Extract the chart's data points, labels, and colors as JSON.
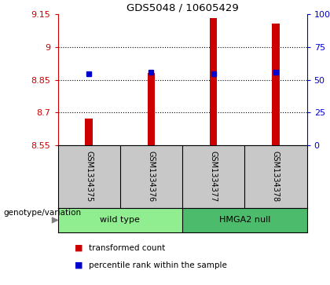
{
  "title": "GDS5048 / 10605429",
  "samples": [
    "GSM1334375",
    "GSM1334376",
    "GSM1334377",
    "GSM1334378"
  ],
  "red_values": [
    8.674,
    8.882,
    9.132,
    9.108
  ],
  "blue_values": [
    8.878,
    8.886,
    8.876,
    8.883
  ],
  "ymin": 8.55,
  "ymax": 9.15,
  "yticks_left": [
    8.55,
    8.7,
    8.85,
    9.0,
    9.15
  ],
  "ytick_labels_left": [
    "8.55",
    "8.7",
    "8.85",
    "9",
    "9.15"
  ],
  "yticks_right_pct": [
    0,
    25,
    50,
    75,
    100
  ],
  "ytick_labels_right": [
    "0",
    "25",
    "50",
    "75",
    "100%"
  ],
  "gridlines": [
    8.7,
    8.85,
    9.0
  ],
  "groups": [
    {
      "label": "wild type",
      "indices": [
        0,
        1
      ],
      "color": "#90EE90"
    },
    {
      "label": "HMGA2 null",
      "indices": [
        2,
        3
      ],
      "color": "#4CBB6C"
    }
  ],
  "bar_color": "#CC0000",
  "blue_color": "#0000CC",
  "left_tick_color": "#CC0000",
  "right_tick_color": "#0000CC",
  "sample_bg_color": "#C8C8C8",
  "legend_items": [
    {
      "color": "#CC0000",
      "label": "transformed count"
    },
    {
      "color": "#0000CC",
      "label": "percentile rank within the sample"
    }
  ],
  "genotype_label": "genotype/variation",
  "plot_bg_color": "#FFFFFF",
  "bar_width": 0.12,
  "blue_marker_size": 5
}
